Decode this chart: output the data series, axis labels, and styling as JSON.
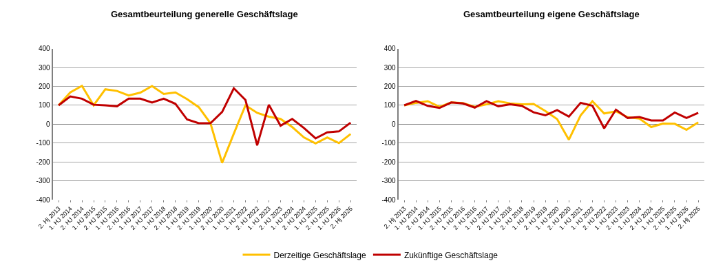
{
  "chart_data": [
    {
      "type": "line",
      "title": "Gesamtbeurteilung generelle Geschäftslage",
      "categories": [
        "2. Hj 2013",
        "1. HJ 2014",
        "2. HJ 2014",
        "1. HJ 2015",
        "2. HJ 2015",
        "1. HJ 2016",
        "2. HJ 2016",
        "1. HJ 2017",
        "2. HJ 2017",
        "1. HJ 2018",
        "2. HJ 2018",
        "1. HJ 2019",
        "2. HJ 2019",
        "1. HJ 2020",
        "2. HJ 2020",
        "1. HJ 2021",
        "1. HJ 2022",
        "2. HJ 2022",
        "1. HJ 2023",
        "2. HJ 2023",
        "1. HJ 2024",
        "2. HJ 2024",
        "1. HJ 2025",
        "2. HJ 2025",
        "1. HJ 2026",
        "2. Hj 2026"
      ],
      "series": [
        {
          "name": "Derzeitige Geschäftslage",
          "color": "#ffc000",
          "values": [
            100,
            168,
            203,
            100,
            185,
            176,
            152,
            167,
            202,
            160,
            168,
            133,
            90,
            5,
            -205,
            -50,
            100,
            60,
            40,
            28,
            -15,
            -70,
            -102,
            -70,
            -100,
            -52
          ]
        },
        {
          "name": "Zukünftige Geschäftslage",
          "color": "#c00000",
          "values": [
            100,
            147,
            135,
            103,
            100,
            95,
            135,
            135,
            115,
            135,
            108,
            25,
            5,
            5,
            65,
            190,
            128,
            -112,
            103,
            -8,
            28,
            -20,
            -75,
            -43,
            -38,
            8
          ]
        }
      ],
      "ylim": [
        -400,
        400
      ],
      "yticks": [
        -400,
        -300,
        -200,
        -100,
        0,
        100,
        200,
        300,
        400
      ],
      "grid": "y",
      "legend": "bottom",
      "marker": "none",
      "line_style": "solid"
    },
    {
      "type": "line",
      "title": "Gesamtbeurteilung eigene Geschäftslage",
      "categories": [
        "2. Hj 2013",
        "1. HJ 2014",
        "2. HJ 2014",
        "1. HJ 2015",
        "2. HJ 2015",
        "1. HJ 2016",
        "2. HJ 2016",
        "1. HJ 2017",
        "2. HJ 2017",
        "1. HJ 2018",
        "2. HJ 2018",
        "1. HJ 2019",
        "2. HJ 2019",
        "1. HJ 2020",
        "2. HJ 2020",
        "1. HJ 2021",
        "1. HJ 2022",
        "2. HJ 2022",
        "1. HJ 2023",
        "2. HJ 2023",
        "1. HJ 2024",
        "2. HJ 2024",
        "1. HJ 2025",
        "2. HJ 2025",
        "1. HJ 2026",
        "2. Hj 2026"
      ],
      "series": [
        {
          "name": "Derzeitige Geschäftslage",
          "color": "#ffc000",
          "values": [
            100,
            113,
            122,
            92,
            115,
            112,
            92,
            105,
            122,
            110,
            105,
            107,
            70,
            27,
            -82,
            47,
            122,
            57,
            68,
            37,
            30,
            -15,
            3,
            2,
            -30,
            10
          ]
        },
        {
          "name": "Zukünftige Geschäftslage",
          "color": "#c00000",
          "values": [
            100,
            123,
            97,
            86,
            115,
            110,
            88,
            122,
            95,
            105,
            97,
            63,
            47,
            75,
            40,
            113,
            98,
            -22,
            77,
            33,
            38,
            20,
            20,
            62,
            33,
            60
          ]
        }
      ],
      "ylim": [
        -400,
        400
      ],
      "yticks": [
        -400,
        -300,
        -200,
        -100,
        0,
        100,
        200,
        300,
        400
      ],
      "grid": "y",
      "legend": "bottom",
      "marker": "none",
      "line_style": "solid"
    }
  ]
}
